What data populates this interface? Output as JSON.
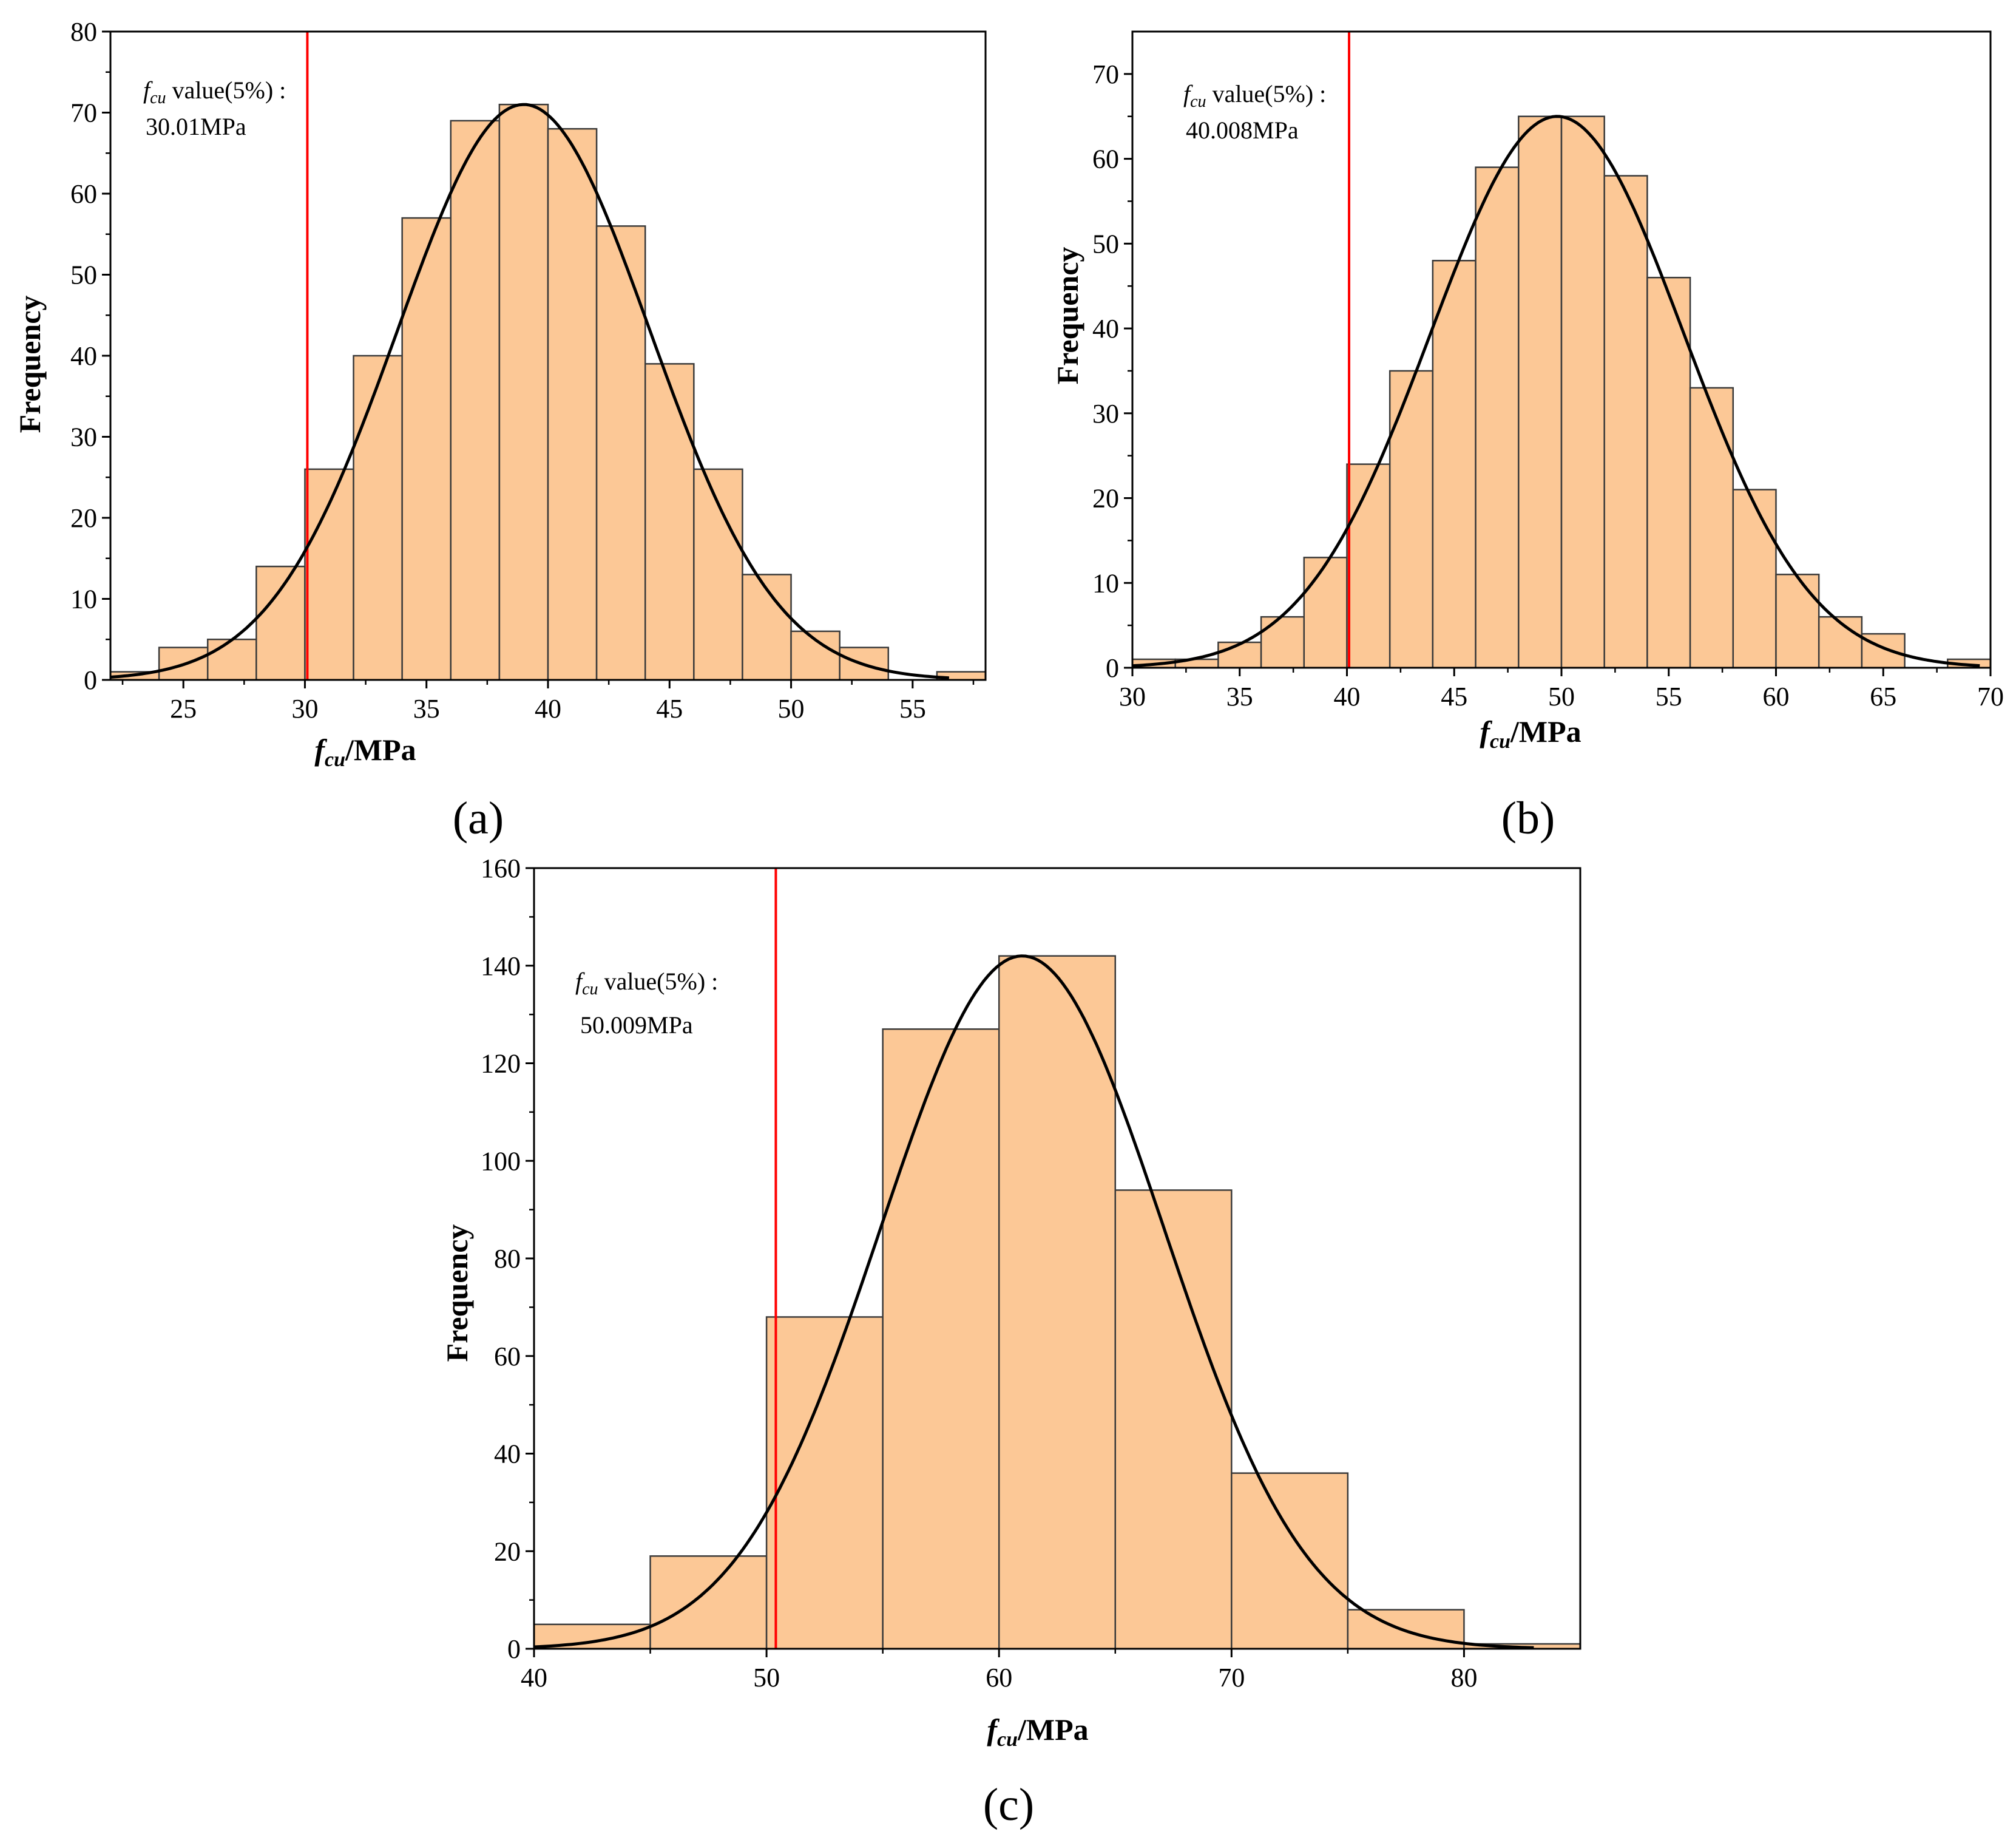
{
  "colors": {
    "bar_fill": "#fcc896",
    "bar_stroke": "#3a3a3a",
    "curve": "#000000",
    "threshold": "#ff0000"
  },
  "chart_data": [
    {
      "id": "a",
      "type": "bar",
      "panel_label": "(a)",
      "xlabel": {
        "main": "f",
        "sub": "cu",
        "suffix": "/MPa"
      },
      "ylabel": "Frequency",
      "xlim": [
        22,
        58
      ],
      "ylim": [
        0,
        80
      ],
      "xticks": [
        25,
        30,
        35,
        40,
        45,
        50,
        55
      ],
      "yticks": [
        0,
        10,
        20,
        30,
        40,
        50,
        60,
        70,
        80
      ],
      "bins": [
        {
          "x0": 22,
          "x1": 24,
          "count": 1
        },
        {
          "x0": 24,
          "x1": 26,
          "count": 4
        },
        {
          "x0": 26,
          "x1": 28,
          "count": 5
        },
        {
          "x0": 28,
          "x1": 30,
          "count": 14
        },
        {
          "x0": 30,
          "x1": 32,
          "count": 26
        },
        {
          "x0": 32,
          "x1": 34,
          "count": 40
        },
        {
          "x0": 34,
          "x1": 36,
          "count": 57
        },
        {
          "x0": 36,
          "x1": 38,
          "count": 69
        },
        {
          "x0": 38,
          "x1": 40,
          "count": 71
        },
        {
          "x0": 40,
          "x1": 42,
          "count": 68
        },
        {
          "x0": 42,
          "x1": 44,
          "count": 56
        },
        {
          "x0": 44,
          "x1": 46,
          "count": 39
        },
        {
          "x0": 46,
          "x1": 48,
          "count": 26
        },
        {
          "x0": 48,
          "x1": 50,
          "count": 13
        },
        {
          "x0": 50,
          "x1": 52,
          "count": 6
        },
        {
          "x0": 52,
          "x1": 54,
          "count": 4
        },
        {
          "x0": 54,
          "x1": 56,
          "count": 0
        },
        {
          "x0": 56,
          "x1": 58,
          "count": 1
        }
      ],
      "normal_fit": {
        "mean": 39,
        "sd": 5.2,
        "peak": 71,
        "x_range": [
          22,
          56.5
        ]
      },
      "threshold": 30.1,
      "annotation": {
        "prefix": "f",
        "sub": "cu",
        "text": " value(5%) :",
        "value": "30.01MPa"
      }
    },
    {
      "id": "b",
      "type": "bar",
      "panel_label": "(b)",
      "xlabel": {
        "main": "f",
        "sub": "cu",
        "suffix": "/MPa"
      },
      "ylabel": "Frequency",
      "xlim": [
        30,
        70
      ],
      "ylim": [
        0,
        75
      ],
      "xticks": [
        30,
        35,
        40,
        45,
        50,
        55,
        60,
        65,
        70
      ],
      "yticks": [
        0,
        10,
        20,
        30,
        40,
        50,
        60,
        70
      ],
      "bins": [
        {
          "x0": 30,
          "x1": 32,
          "count": 1
        },
        {
          "x0": 32,
          "x1": 34,
          "count": 1
        },
        {
          "x0": 34,
          "x1": 36,
          "count": 3
        },
        {
          "x0": 36,
          "x1": 38,
          "count": 6
        },
        {
          "x0": 38,
          "x1": 40,
          "count": 13
        },
        {
          "x0": 40,
          "x1": 42,
          "count": 24
        },
        {
          "x0": 42,
          "x1": 44,
          "count": 35
        },
        {
          "x0": 44,
          "x1": 46,
          "count": 48
        },
        {
          "x0": 46,
          "x1": 48,
          "count": 59
        },
        {
          "x0": 48,
          "x1": 50,
          "count": 65
        },
        {
          "x0": 50,
          "x1": 52,
          "count": 65
        },
        {
          "x0": 52,
          "x1": 54,
          "count": 58
        },
        {
          "x0": 54,
          "x1": 56,
          "count": 46
        },
        {
          "x0": 56,
          "x1": 58,
          "count": 33
        },
        {
          "x0": 58,
          "x1": 60,
          "count": 21
        },
        {
          "x0": 60,
          "x1": 62,
          "count": 11
        },
        {
          "x0": 62,
          "x1": 64,
          "count": 6
        },
        {
          "x0": 64,
          "x1": 66,
          "count": 4
        },
        {
          "x0": 66,
          "x1": 68,
          "count": 0
        },
        {
          "x0": 68,
          "x1": 70,
          "count": 1
        }
      ],
      "normal_fit": {
        "mean": 49.8,
        "sd": 5.9,
        "peak": 65,
        "x_range": [
          30,
          69.5
        ]
      },
      "threshold": 40.1,
      "annotation": {
        "prefix": "f",
        "sub": "cu",
        "text": " value(5%) :",
        "value": "40.008MPa"
      }
    },
    {
      "id": "c",
      "type": "bar",
      "panel_label": "(c)",
      "xlabel": {
        "main": "f",
        "sub": "cu",
        "suffix": "/MPa"
      },
      "ylabel": "Frequency",
      "xlim": [
        40,
        85
      ],
      "ylim": [
        0,
        160
      ],
      "xticks": [
        40,
        50,
        60,
        70,
        80
      ],
      "yticks": [
        0,
        20,
        40,
        60,
        80,
        100,
        120,
        140,
        160
      ],
      "bins": [
        {
          "x0": 40,
          "x1": 45,
          "count": 5
        },
        {
          "x0": 45,
          "x1": 50,
          "count": 19
        },
        {
          "x0": 50,
          "x1": 55,
          "count": 68
        },
        {
          "x0": 55,
          "x1": 60,
          "count": 127
        },
        {
          "x0": 60,
          "x1": 65,
          "count": 142
        },
        {
          "x0": 65,
          "x1": 70,
          "count": 94
        },
        {
          "x0": 70,
          "x1": 75,
          "count": 36
        },
        {
          "x0": 75,
          "x1": 80,
          "count": 8
        },
        {
          "x0": 80,
          "x1": 85,
          "count": 1
        }
      ],
      "normal_fit": {
        "mean": 61,
        "sd": 6.1,
        "peak": 142,
        "x_range": [
          40,
          83
        ]
      },
      "threshold": 50.4,
      "annotation": {
        "prefix": "f",
        "sub": "cu",
        "text": " value(5%) :",
        "value": "50.009MPa"
      }
    }
  ]
}
